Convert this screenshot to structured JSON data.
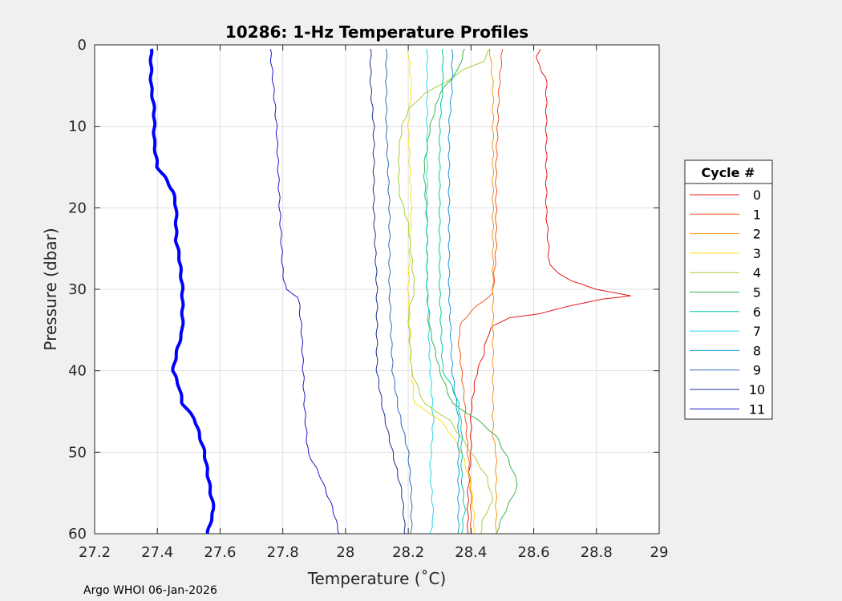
{
  "chart_data": {
    "type": "line",
    "title": "10286: 1-Hz Temperature Profiles",
    "xlabel": "Temperature (˚C)",
    "ylabel": "Pressure (dbar)",
    "xlim": [
      27.2,
      29
    ],
    "ylim": [
      0,
      60
    ],
    "y_reversed": true,
    "grid": true,
    "x_ticks": [
      27.2,
      27.4,
      27.6,
      27.8,
      28,
      28.2,
      28.4,
      28.6,
      28.8,
      29
    ],
    "x_tick_labels": [
      "27.2",
      "27.4",
      "27.6",
      "27.8",
      "28",
      "28.2",
      "28.4",
      "28.6",
      "28.8",
      "29"
    ],
    "y_ticks": [
      0,
      10,
      20,
      30,
      40,
      50,
      60
    ],
    "y_tick_labels": [
      "0",
      "10",
      "20",
      "30",
      "40",
      "50",
      "60"
    ],
    "legend": {
      "title": "Cycle #",
      "placement": "outside-right"
    },
    "series": [
      {
        "name": "0",
        "color": "#e41a1c",
        "width": 1,
        "points": [
          [
            28.62,
            0.5
          ],
          [
            28.61,
            1.5
          ],
          [
            28.62,
            3
          ],
          [
            28.64,
            4
          ],
          [
            28.64,
            10
          ],
          [
            28.64,
            20
          ],
          [
            28.65,
            27
          ],
          [
            28.68,
            28
          ],
          [
            28.72,
            29
          ],
          [
            28.8,
            30
          ],
          [
            28.91,
            30.8
          ],
          [
            28.82,
            31.2
          ],
          [
            28.72,
            32
          ],
          [
            28.62,
            33
          ],
          [
            28.52,
            33.5
          ],
          [
            28.47,
            34.5
          ],
          [
            28.45,
            36
          ],
          [
            28.44,
            38
          ],
          [
            28.42,
            40
          ],
          [
            28.41,
            42
          ],
          [
            28.4,
            45
          ],
          [
            28.4,
            50
          ],
          [
            28.39,
            55
          ],
          [
            28.39,
            60
          ]
        ]
      },
      {
        "name": "1",
        "color": "#f15a22",
        "width": 1,
        "points": [
          [
            28.5,
            0.5
          ],
          [
            28.49,
            5
          ],
          [
            28.48,
            15
          ],
          [
            28.48,
            25
          ],
          [
            28.47,
            30.5
          ],
          [
            28.42,
            32
          ],
          [
            28.37,
            34
          ],
          [
            28.36,
            36
          ],
          [
            28.37,
            40
          ],
          [
            28.38,
            44
          ],
          [
            28.39,
            50
          ],
          [
            28.4,
            55
          ],
          [
            28.4,
            60
          ]
        ]
      },
      {
        "name": "2",
        "color": "#f7941d",
        "width": 1,
        "points": [
          [
            28.46,
            0.5
          ],
          [
            28.47,
            5
          ],
          [
            28.47,
            15
          ],
          [
            28.47,
            30
          ],
          [
            28.47,
            40
          ],
          [
            28.47,
            48
          ],
          [
            28.48,
            50
          ],
          [
            28.48,
            56
          ],
          [
            28.48,
            60
          ]
        ]
      },
      {
        "name": "3",
        "color": "#ffde17",
        "width": 1,
        "points": [
          [
            28.2,
            0.5
          ],
          [
            28.21,
            5
          ],
          [
            28.2,
            10
          ],
          [
            28.21,
            20
          ],
          [
            28.2,
            30
          ],
          [
            28.21,
            40
          ],
          [
            28.22,
            44
          ],
          [
            28.3,
            46
          ],
          [
            28.34,
            48
          ],
          [
            28.37,
            50
          ],
          [
            28.4,
            54
          ],
          [
            28.41,
            58
          ],
          [
            28.41,
            60
          ]
        ]
      },
      {
        "name": "4",
        "color": "#a6ce39",
        "width": 1,
        "points": [
          [
            28.46,
            0.5
          ],
          [
            28.44,
            2
          ],
          [
            28.38,
            3
          ],
          [
            28.3,
            5
          ],
          [
            28.25,
            6
          ],
          [
            28.2,
            8
          ],
          [
            28.18,
            10
          ],
          [
            28.17,
            13
          ],
          [
            28.17,
            18
          ],
          [
            28.2,
            22
          ],
          [
            28.22,
            30
          ],
          [
            28.2,
            33
          ],
          [
            28.21,
            40
          ],
          [
            28.25,
            44
          ],
          [
            28.33,
            46
          ],
          [
            28.4,
            50
          ],
          [
            28.45,
            53
          ],
          [
            28.47,
            56
          ],
          [
            28.44,
            58
          ],
          [
            28.43,
            60
          ]
        ]
      },
      {
        "name": "5",
        "color": "#39b54a",
        "width": 1,
        "points": [
          [
            28.38,
            0.5
          ],
          [
            28.36,
            3
          ],
          [
            28.3,
            6
          ],
          [
            28.27,
            10
          ],
          [
            28.25,
            15
          ],
          [
            28.26,
            22
          ],
          [
            28.26,
            30
          ],
          [
            28.27,
            35
          ],
          [
            28.3,
            40
          ],
          [
            28.34,
            44
          ],
          [
            28.42,
            46
          ],
          [
            28.48,
            48
          ],
          [
            28.52,
            51
          ],
          [
            28.55,
            54
          ],
          [
            28.5,
            58
          ],
          [
            28.48,
            60
          ]
        ]
      },
      {
        "name": "6",
        "color": "#00c9a7",
        "width": 1,
        "points": [
          [
            28.31,
            0.5
          ],
          [
            28.31,
            5
          ],
          [
            28.3,
            10
          ],
          [
            28.3,
            20
          ],
          [
            28.3,
            30
          ],
          [
            28.31,
            40
          ],
          [
            28.34,
            42
          ],
          [
            28.36,
            44
          ],
          [
            28.37,
            47
          ],
          [
            28.37,
            53
          ],
          [
            28.38,
            57
          ],
          [
            28.37,
            60
          ]
        ]
      },
      {
        "name": "7",
        "color": "#27d5e8",
        "width": 1,
        "points": [
          [
            28.26,
            0.5
          ],
          [
            28.26,
            10
          ],
          [
            28.26,
            20
          ],
          [
            28.26,
            30
          ],
          [
            28.27,
            40
          ],
          [
            28.28,
            46
          ],
          [
            28.27,
            52
          ],
          [
            28.28,
            58
          ],
          [
            28.27,
            60
          ]
        ]
      },
      {
        "name": "8",
        "color": "#1c9ad6",
        "width": 1,
        "points": [
          [
            28.34,
            0.5
          ],
          [
            28.34,
            5
          ],
          [
            28.33,
            10
          ],
          [
            28.33,
            20
          ],
          [
            28.33,
            30
          ],
          [
            28.34,
            40
          ],
          [
            28.36,
            46
          ],
          [
            28.36,
            52
          ],
          [
            28.36,
            58
          ],
          [
            28.36,
            60
          ]
        ]
      },
      {
        "name": "9",
        "color": "#2e6db4",
        "width": 1,
        "points": [
          [
            28.13,
            0.5
          ],
          [
            28.13,
            5
          ],
          [
            28.13,
            10
          ],
          [
            28.14,
            20
          ],
          [
            28.14,
            30
          ],
          [
            28.15,
            40
          ],
          [
            28.17,
            45
          ],
          [
            28.2,
            50
          ],
          [
            28.21,
            55
          ],
          [
            28.21,
            60
          ]
        ]
      },
      {
        "name": "10",
        "color": "#1b2f91",
        "width": 1,
        "points": [
          [
            28.08,
            0.5
          ],
          [
            28.08,
            5
          ],
          [
            28.09,
            10
          ],
          [
            28.09,
            20
          ],
          [
            28.1,
            30
          ],
          [
            28.1,
            40
          ],
          [
            28.12,
            45
          ],
          [
            28.15,
            50
          ],
          [
            28.18,
            55
          ],
          [
            28.19,
            60
          ]
        ]
      },
      {
        "name": "11",
        "color": "#1b1bc7",
        "width": 1,
        "points": [
          [
            27.76,
            0.5
          ],
          [
            27.77,
            5
          ],
          [
            27.78,
            10
          ],
          [
            27.79,
            20
          ],
          [
            27.8,
            28
          ],
          [
            27.81,
            30
          ],
          [
            27.85,
            31
          ],
          [
            27.86,
            35
          ],
          [
            27.87,
            45
          ],
          [
            27.88,
            50
          ],
          [
            27.92,
            53
          ],
          [
            27.96,
            57
          ],
          [
            27.98,
            60
          ]
        ]
      },
      {
        "name": "",
        "color": "#0000ff",
        "width": 4,
        "points": [
          [
            27.38,
            0.5
          ],
          [
            27.38,
            5
          ],
          [
            27.39,
            8
          ],
          [
            27.39,
            12
          ],
          [
            27.4,
            15
          ],
          [
            27.42,
            16
          ],
          [
            27.45,
            18
          ],
          [
            27.46,
            20
          ],
          [
            27.46,
            24
          ],
          [
            27.47,
            26
          ],
          [
            27.48,
            30
          ],
          [
            27.48,
            35
          ],
          [
            27.46,
            38
          ],
          [
            27.45,
            40
          ],
          [
            27.47,
            42
          ],
          [
            27.48,
            44
          ],
          [
            27.52,
            46
          ],
          [
            27.55,
            50
          ],
          [
            27.57,
            55
          ],
          [
            27.58,
            57
          ],
          [
            27.56,
            60
          ]
        ]
      }
    ]
  },
  "footer": {
    "text": "Argo WHOI 06-Jan-2026"
  }
}
